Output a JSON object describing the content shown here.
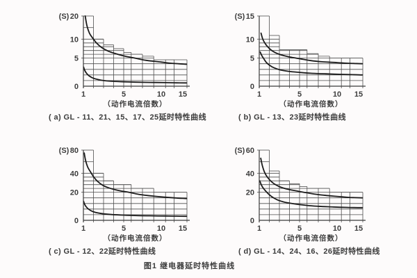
{
  "figure_caption": "图1  继电器延时特性曲线",
  "style": {
    "background": "#fdfbfb",
    "grid_color": "#4d4d4d",
    "axis_color": "#3a3a3a",
    "curve_color": "#1b1b1b",
    "text_color": "#3b3b3b"
  },
  "chart_data": [
    {
      "id": "a",
      "type": "line",
      "caption": "( a) GL - 11、21、15、17、25延时特性曲线",
      "xlabel": "（动作电流倍数）",
      "ylabel": "(S)",
      "x_ticks": [
        1,
        5,
        10,
        15
      ],
      "y_ticks": [
        0,
        5,
        10,
        20
      ],
      "xlim": [
        1,
        16
      ],
      "ylim": [
        0,
        20
      ],
      "step_boundaries": [
        1,
        2,
        3,
        4,
        5,
        6,
        7.5,
        9,
        11,
        13,
        16
      ],
      "step_tops": [
        20,
        10,
        8.5,
        7.5,
        6.5,
        6,
        5.5,
        4.7,
        4.7,
        4.7
      ],
      "gridlines_y": [
        1,
        2,
        3,
        4,
        5,
        6,
        7,
        8,
        9,
        10,
        15
      ],
      "series": [
        {
          "name": "upper-curve",
          "x": [
            1.18,
            1.35,
            1.6,
            1.9,
            2.3,
            2.8,
            3.5,
            4.3,
            5.2,
            6.5,
            8,
            10,
            12,
            14,
            15.9
          ],
          "y": [
            20,
            15.8,
            12.6,
            10.6,
            9.0,
            7.8,
            6.8,
            6.1,
            5.5,
            5.0,
            4.6,
            4.3,
            4.1,
            4.0,
            3.9
          ]
        },
        {
          "name": "lower-curve",
          "x": [
            1.02,
            1.15,
            1.35,
            1.6,
            1.95,
            2.4,
            3,
            3.8,
            5,
            6.5,
            8.5,
            11,
            13.5,
            15.9
          ],
          "y": [
            3.4,
            2.75,
            2.2,
            1.8,
            1.45,
            1.2,
            1.0,
            0.88,
            0.78,
            0.72,
            0.67,
            0.63,
            0.6,
            0.58
          ]
        }
      ]
    },
    {
      "id": "b",
      "type": "line",
      "caption": "( b) GL - 13、23延时特性曲线",
      "xlabel": "（动作电流倍数）",
      "ylabel": "(S)",
      "x_ticks": [
        1,
        5,
        10,
        15
      ],
      "y_ticks": [
        0,
        5,
        10,
        15
      ],
      "xlim": [
        1,
        16
      ],
      "ylim": [
        0,
        15
      ],
      "step_boundaries": [
        1,
        2,
        3,
        4,
        5,
        6,
        7.5,
        9,
        11,
        13,
        16
      ],
      "step_tops": [
        15,
        10.8,
        7.2,
        7.2,
        7.2,
        6.2,
        5.5,
        5,
        5,
        5
      ],
      "gridlines_y": [
        1,
        2,
        3,
        4,
        5,
        6,
        7,
        8,
        9,
        10
      ],
      "series": [
        {
          "name": "upper-curve",
          "x": [
            1.18,
            1.35,
            1.6,
            1.9,
            2.3,
            2.8,
            3.5,
            4.3,
            5.2,
            6.5,
            8,
            10,
            12,
            14,
            15.9
          ],
          "y": [
            11.3,
            10.0,
            8.8,
            7.8,
            6.9,
            6.2,
            5.6,
            5.15,
            4.85,
            4.55,
            4.35,
            4.2,
            4.1,
            4.05,
            4.0
          ]
        },
        {
          "name": "lower-curve",
          "x": [
            1.1,
            1.25,
            1.45,
            1.7,
            2.05,
            2.5,
            3.1,
            3.9,
            5,
            6.5,
            8.5,
            11,
            13.5,
            15.9
          ],
          "y": [
            6.6,
            5.7,
            4.9,
            4.25,
            3.7,
            3.25,
            2.9,
            2.65,
            2.45,
            2.3,
            2.2,
            2.1,
            2.05,
            2.0
          ]
        }
      ]
    },
    {
      "id": "c",
      "type": "line",
      "caption": "( c) GL - 12、22延时特性曲线",
      "xlabel": "（动作电流倍数）",
      "ylabel": "(S)",
      "x_ticks": [
        1,
        5,
        10,
        15
      ],
      "y_ticks": [
        0,
        20,
        40,
        80
      ],
      "xlim": [
        1,
        16
      ],
      "ylim": [
        0,
        80
      ],
      "step_boundaries": [
        1,
        2,
        3,
        4,
        5,
        6,
        7.5,
        9,
        11,
        13,
        16
      ],
      "step_tops": [
        80,
        40,
        32,
        28,
        28,
        24,
        24,
        20,
        20,
        20
      ],
      "gridlines_y": [
        4,
        8,
        12,
        16,
        20,
        24,
        28,
        32,
        36,
        40,
        60
      ],
      "series": [
        {
          "name": "upper-curve",
          "x": [
            1.08,
            1.22,
            1.42,
            1.68,
            2.0,
            2.4,
            2.9,
            3.6,
            4.5,
            5.5,
            7,
            8.5,
            10.5,
            13,
            15.9
          ],
          "y": [
            75,
            62,
            51,
            43,
            36.5,
            31.5,
            27.5,
            24.3,
            21.8,
            20.2,
            18.5,
            17.5,
            16.6,
            16,
            15.5
          ]
        },
        {
          "name": "lower-curve",
          "x": [
            1.02,
            1.15,
            1.35,
            1.6,
            1.95,
            2.4,
            3,
            3.8,
            5,
            6.5,
            8.5,
            11,
            13.5,
            15.9
          ],
          "y": [
            13.5,
            11,
            9,
            7.5,
            6.2,
            5.3,
            4.6,
            4.1,
            3.7,
            3.4,
            3.2,
            3.05,
            2.95,
            2.85
          ]
        }
      ]
    },
    {
      "id": "d",
      "type": "line",
      "caption": "( d) GL - 14、24、16、26延时特性曲线",
      "xlabel": "（动作电流倍数）",
      "ylabel": "(S)",
      "x_ticks": [
        1,
        5,
        10,
        15
      ],
      "y_ticks": [
        0,
        20,
        40,
        60
      ],
      "xlim": [
        1,
        16
      ],
      "ylim": [
        0,
        60
      ],
      "step_boundaries": [
        1,
        2,
        3,
        4,
        5,
        6,
        7.5,
        9,
        11,
        13,
        16
      ],
      "step_tops": [
        60,
        42,
        32,
        29,
        26,
        24,
        24,
        20,
        20,
        20
      ],
      "gridlines_y": [
        4,
        8,
        12,
        16,
        20,
        24,
        28,
        32,
        36,
        40,
        50
      ],
      "series": [
        {
          "name": "upper-curve",
          "x": [
            1.15,
            1.3,
            1.5,
            1.75,
            2.1,
            2.5,
            3.1,
            3.9,
            4.9,
            6,
            7.5,
            9,
            11,
            13,
            15.9
          ],
          "y": [
            53,
            47,
            41.5,
            36.8,
            32.3,
            28.8,
            25.5,
            23,
            21,
            19.6,
            18.3,
            17.5,
            16.8,
            16.3,
            16
          ]
        },
        {
          "name": "lower-curve",
          "x": [
            1.05,
            1.2,
            1.4,
            1.65,
            2.0,
            2.45,
            3.0,
            3.8,
            4.8,
            6,
            7.5,
            9.5,
            12,
            14,
            15.9
          ],
          "y": [
            32,
            28,
            24.3,
            21.2,
            18.2,
            15.9,
            14.0,
            12.5,
            11.4,
            10.6,
            10.0,
            9.5,
            9.2,
            9.05,
            9.0
          ]
        }
      ]
    }
  ]
}
